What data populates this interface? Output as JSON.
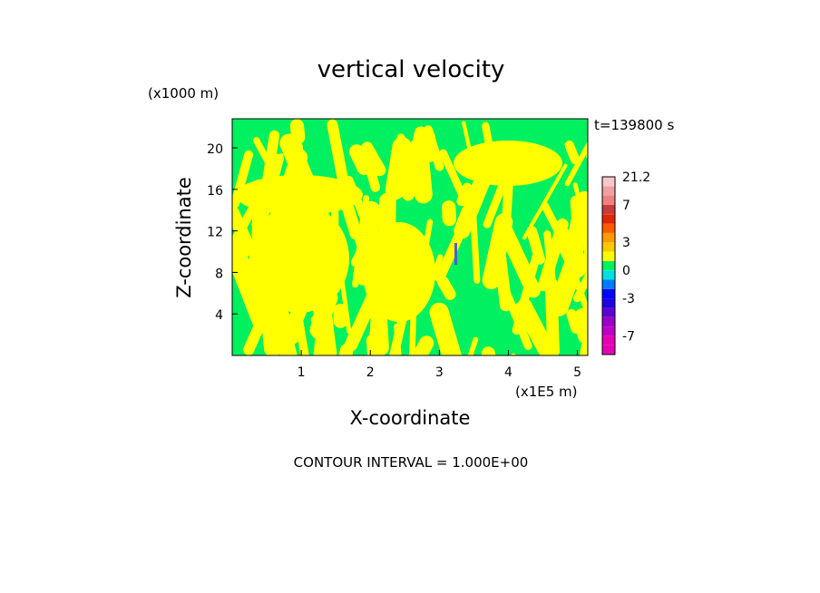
{
  "chart_data": {
    "type": "heatmap",
    "title": "vertical velocity",
    "xlabel": "X-coordinate",
    "ylabel": "Z-coordinate",
    "x_units": "(x1E5 m)",
    "y_units": "(x1000 m)",
    "time_label": "t=139800 s",
    "footer": "CONTOUR INTERVAL = 1.000E+00",
    "xlim": [
      0,
      5.15
    ],
    "ylim": [
      0,
      22.8
    ],
    "x_ticks": [
      "1",
      "2",
      "3",
      "4",
      "5"
    ],
    "y_ticks": [
      "4",
      "8",
      "12",
      "16",
      "20"
    ],
    "contour_interval": 1.0,
    "colorbar": {
      "max_label": "21.2",
      "labels": [
        "21.2",
        "7",
        "3",
        "0",
        "-3",
        "-7"
      ],
      "levels": [
        {
          "value": -10,
          "color": "#e600b4"
        },
        {
          "value": -8,
          "color": "#e600b4"
        },
        {
          "value": -7,
          "color": "#c000c0"
        },
        {
          "value": -6,
          "color": "#9a00c8"
        },
        {
          "value": -5,
          "color": "#6000d0"
        },
        {
          "value": -4,
          "color": "#1f00e0"
        },
        {
          "value": -3,
          "color": "#0000ff"
        },
        {
          "value": -2,
          "color": "#007cff"
        },
        {
          "value": -1,
          "color": "#00e0e0"
        },
        {
          "value": 0,
          "color": "#00f060"
        },
        {
          "value": 1,
          "color": "#ffff00"
        },
        {
          "value": 2,
          "color": "#ffc800"
        },
        {
          "value": 3,
          "color": "#ff9a00"
        },
        {
          "value": 4,
          "color": "#ff5a00"
        },
        {
          "value": 5,
          "color": "#e02800"
        },
        {
          "value": 6,
          "color": "#c83c3c"
        },
        {
          "value": 7,
          "color": "#f08080"
        },
        {
          "value": 10,
          "color": "#f0a0a0"
        },
        {
          "value": 14,
          "color": "#f8c8c8"
        },
        {
          "value": 21.2,
          "color": "#fde8e8"
        }
      ]
    },
    "field_colors": {
      "negative": "#00f060",
      "positive": "#ffff00",
      "updraft_core": "#5a5ad0"
    }
  }
}
